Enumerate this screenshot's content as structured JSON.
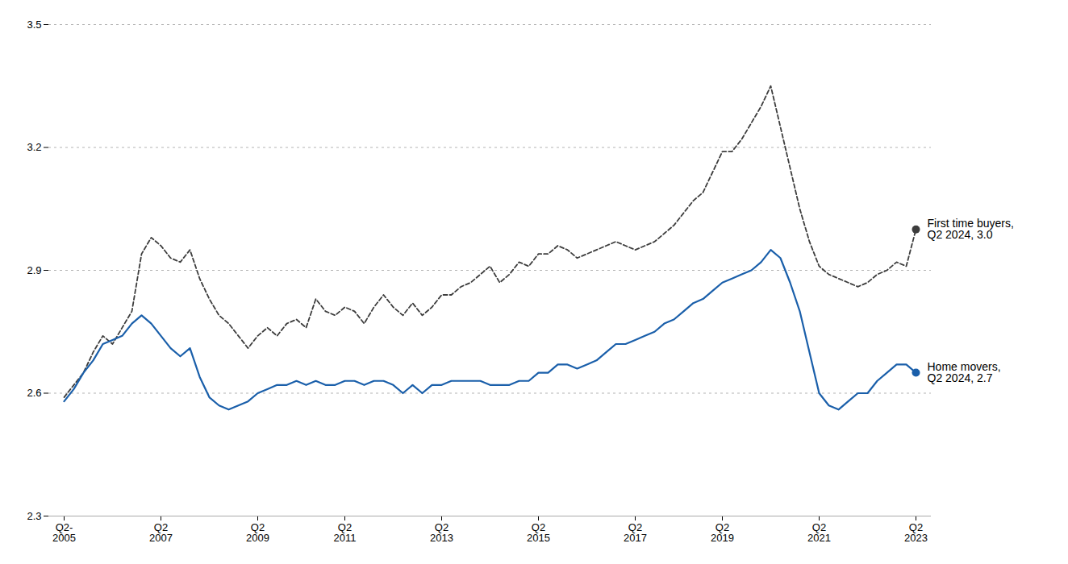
{
  "chart_data": {
    "type": "line",
    "categories": [
      "Q2-\n2005",
      null,
      null,
      null,
      null,
      null,
      null,
      null,
      null,
      null,
      "Q2\n2007",
      null,
      null,
      null,
      null,
      null,
      null,
      null,
      null,
      null,
      "Q2\n2009",
      null,
      null,
      null,
      null,
      null,
      null,
      null,
      null,
      "Q2\n2011",
      null,
      null,
      null,
      null,
      null,
      null,
      null,
      null,
      null,
      "Q2\n2013",
      null,
      null,
      null,
      null,
      null,
      null,
      null,
      null,
      null,
      "Q2\n2015",
      null,
      null,
      null,
      null,
      null,
      null,
      null,
      null,
      null,
      "Q2\n2017",
      null,
      null,
      null,
      null,
      null,
      null,
      null,
      null,
      "Q2\n2019",
      null,
      null,
      null,
      null,
      null,
      null,
      null,
      null,
      null,
      "Q2\n2021",
      null,
      null,
      null,
      null,
      null,
      null,
      null,
      null,
      null,
      "Q2\n2023"
    ],
    "series": [
      {
        "color": "#3d3d3d",
        "line_style": "dashed",
        "values": [
          2.59,
          2.62,
          2.65,
          2.7,
          2.74,
          2.72,
          2.76,
          2.8,
          2.94,
          2.98,
          2.96,
          2.93,
          2.92,
          2.95,
          2.88,
          2.83,
          2.79,
          2.77,
          2.74,
          2.71,
          2.74,
          2.76,
          2.74,
          2.77,
          2.78,
          2.76,
          2.83,
          2.8,
          2.79,
          2.81,
          2.8,
          2.77,
          2.81,
          2.84,
          2.81,
          2.79,
          2.82,
          2.79,
          2.81,
          2.84,
          2.84,
          2.86,
          2.87,
          2.89,
          2.91,
          2.87,
          2.89,
          2.92,
          2.91,
          2.94,
          2.94,
          2.96,
          2.95,
          2.93,
          2.94,
          2.95,
          2.96,
          2.97,
          2.96,
          2.95,
          2.96,
          2.97,
          2.99,
          3.01,
          3.04,
          3.07,
          3.09,
          3.14,
          3.19,
          3.19,
          3.22,
          3.26,
          3.3,
          3.35,
          3.25,
          3.15,
          3.05,
          2.97,
          2.91,
          2.89,
          2.88,
          2.87,
          2.86,
          2.87,
          2.89,
          2.9,
          2.92,
          2.91,
          3.0
        ]
      },
      {
        "color": "#1a5faa",
        "line_style": "solid",
        "values": [
          2.58,
          2.61,
          2.65,
          2.68,
          2.72,
          2.73,
          2.74,
          2.77,
          2.79,
          2.77,
          2.74,
          2.71,
          2.69,
          2.71,
          2.64,
          2.59,
          2.57,
          2.56,
          2.57,
          2.58,
          2.6,
          2.61,
          2.62,
          2.62,
          2.63,
          2.62,
          2.63,
          2.62,
          2.62,
          2.63,
          2.63,
          2.62,
          2.63,
          2.63,
          2.62,
          2.6,
          2.62,
          2.6,
          2.62,
          2.62,
          2.63,
          2.63,
          2.63,
          2.63,
          2.62,
          2.62,
          2.62,
          2.63,
          2.63,
          2.65,
          2.65,
          2.67,
          2.67,
          2.66,
          2.67,
          2.68,
          2.7,
          2.72,
          2.72,
          2.73,
          2.74,
          2.75,
          2.77,
          2.78,
          2.8,
          2.82,
          2.83,
          2.85,
          2.87,
          2.88,
          2.89,
          2.9,
          2.92,
          2.95,
          2.93,
          2.87,
          2.8,
          2.7,
          2.6,
          2.57,
          2.56,
          2.58,
          2.6,
          2.6,
          2.63,
          2.65,
          2.67,
          2.67,
          2.65
        ]
      }
    ],
    "ylim": [
      2.3,
      3.5
    ],
    "yticks": [
      2.3,
      2.6,
      2.9,
      3.2,
      3.5
    ],
    "grid": true,
    "annotations": [
      "First time buyers,\nQ2 2024, 3.0",
      "Home movers,\nQ2 2024, 2.7"
    ]
  }
}
